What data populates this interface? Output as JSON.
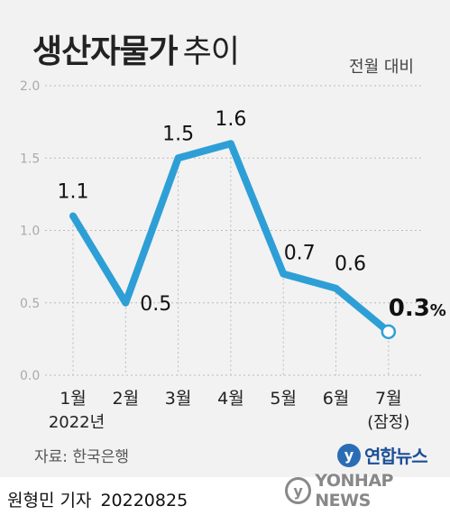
{
  "title": {
    "main": "생산자물가",
    "sub": "추이"
  },
  "unit_label": "전월 대비",
  "source": "자료: 한국은행",
  "logo": {
    "mark": "y",
    "name": "연합뉴스"
  },
  "byline": {
    "reporter": "원형민 기자",
    "date": "20220825"
  },
  "watermark": {
    "mark": "y",
    "text": "YONHAP NEWS"
  },
  "colors": {
    "line": "#2e9fd6",
    "panel": "#f2f2f2",
    "grid": "#bbbbbb"
  },
  "chart_data": {
    "type": "line",
    "categories": [
      "1월",
      "2월",
      "3월",
      "4월",
      "5월",
      "6월",
      "7월"
    ],
    "category_sublabels": [
      "2022년",
      "",
      "",
      "",
      "",
      "",
      "(잠정)"
    ],
    "values": [
      1.1,
      0.5,
      1.5,
      1.6,
      0.7,
      0.6,
      0.3
    ],
    "data_labels": [
      "1.1",
      "0.5",
      "1.5",
      "1.6",
      "0.7",
      "0.6",
      "0.3"
    ],
    "highlight_suffix": "%",
    "yticks": [
      "0.0",
      "0.5",
      "1.0",
      "1.5",
      "2.0"
    ],
    "ylim": [
      0,
      2.0
    ],
    "title": "생산자물가 추이",
    "xlabel": "",
    "ylabel": "",
    "grid": true
  }
}
